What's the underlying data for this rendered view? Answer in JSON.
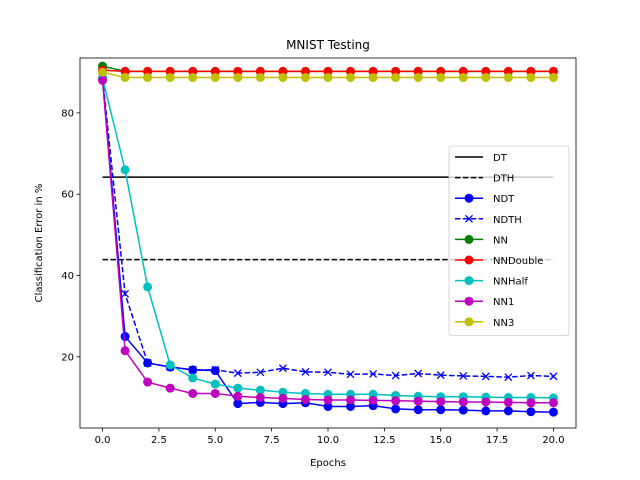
{
  "chart_data": {
    "type": "line",
    "title": "MNIST Testing",
    "xlabel": "Epochs",
    "ylabel": "Classification Error in %",
    "xlim": [
      -1,
      21
    ],
    "ylim": [
      2.5,
      93.5
    ],
    "xticks": [
      "0.0",
      "2.5",
      "5.0",
      "7.5",
      "10.0",
      "12.5",
      "15.0",
      "17.5",
      "20.0"
    ],
    "yticks": [
      "20",
      "40",
      "60",
      "80"
    ],
    "grid": false,
    "legend_position": "center-right",
    "series": [
      {
        "name": "DT",
        "color": "#000000",
        "dash": "solid",
        "marker": "none",
        "x": [
          0,
          20
        ],
        "y": [
          64.2,
          64.2
        ]
      },
      {
        "name": "DTH",
        "color": "#000000",
        "dash": "dashed",
        "marker": "none",
        "x": [
          0,
          20
        ],
        "y": [
          43.9,
          43.9
        ]
      },
      {
        "name": "NDT",
        "color": "#0000ff",
        "dash": "solid",
        "marker": "circle",
        "x": [
          0,
          1,
          2,
          3,
          4,
          5,
          6,
          7,
          8,
          9,
          10,
          11,
          12,
          13,
          14,
          15,
          16,
          17,
          18,
          19,
          20
        ],
        "y": [
          88.5,
          25.0,
          18.5,
          17.5,
          16.8,
          16.6,
          8.5,
          8.8,
          8.5,
          8.7,
          7.8,
          7.8,
          8.0,
          7.2,
          7.0,
          7.0,
          6.9,
          6.7,
          6.7,
          6.5,
          6.4
        ]
      },
      {
        "name": "NDTH",
        "color": "#0000ff",
        "dash": "dashed",
        "marker": "x",
        "x": [
          0,
          1,
          2,
          3,
          4,
          5,
          6,
          7,
          8,
          9,
          10,
          11,
          12,
          13,
          14,
          15,
          16,
          17,
          18,
          19,
          20
        ],
        "y": [
          88.5,
          35.5,
          18.5,
          17.5,
          16.8,
          16.8,
          16.0,
          16.2,
          17.2,
          16.3,
          16.2,
          15.7,
          15.8,
          15.4,
          15.9,
          15.5,
          15.3,
          15.2,
          15.0,
          15.4,
          15.2
        ]
      },
      {
        "name": "NN",
        "color": "#008000",
        "dash": "solid",
        "marker": "circle",
        "x": [
          0,
          1,
          2,
          3,
          4,
          5,
          6,
          7,
          8,
          9,
          10,
          11,
          12,
          13,
          14,
          15,
          16,
          17,
          18,
          19,
          20
        ],
        "y": [
          91.5,
          90.2,
          90.2,
          90.2,
          90.2,
          90.2,
          90.2,
          90.2,
          90.2,
          90.2,
          90.2,
          90.2,
          90.2,
          90.2,
          90.2,
          90.2,
          90.2,
          90.2,
          90.2,
          90.2,
          90.2
        ]
      },
      {
        "name": "NNDouble",
        "color": "#ff0000",
        "dash": "solid",
        "marker": "circle",
        "x": [
          0,
          1,
          2,
          3,
          4,
          5,
          6,
          7,
          8,
          9,
          10,
          11,
          12,
          13,
          14,
          15,
          16,
          17,
          18,
          19,
          20
        ],
        "y": [
          90.5,
          90.2,
          90.2,
          90.2,
          90.2,
          90.2,
          90.2,
          90.2,
          90.2,
          90.2,
          90.2,
          90.2,
          90.2,
          90.2,
          90.2,
          90.2,
          90.2,
          90.2,
          90.2,
          90.2,
          90.2
        ]
      },
      {
        "name": "NNHalf",
        "color": "#00bfbf",
        "dash": "solid",
        "marker": "circle",
        "x": [
          0,
          1,
          2,
          3,
          4,
          5,
          6,
          7,
          8,
          9,
          10,
          11,
          12,
          13,
          14,
          15,
          16,
          17,
          18,
          19,
          20
        ],
        "y": [
          88.5,
          66.0,
          37.2,
          18.0,
          14.8,
          13.3,
          12.3,
          11.8,
          11.3,
          11.0,
          10.8,
          10.8,
          10.8,
          10.5,
          10.3,
          10.2,
          10.2,
          10.1,
          10.0,
          10.0,
          9.9
        ]
      },
      {
        "name": "NN1",
        "color": "#bf00bf",
        "dash": "solid",
        "marker": "circle",
        "x": [
          0,
          1,
          2,
          3,
          4,
          5,
          6,
          7,
          8,
          9,
          10,
          11,
          12,
          13,
          14,
          15,
          16,
          17,
          18,
          19,
          20
        ],
        "y": [
          88.0,
          21.5,
          13.8,
          12.3,
          11.0,
          11.0,
          10.3,
          10.0,
          9.8,
          9.5,
          9.4,
          9.4,
          9.3,
          9.2,
          9.1,
          9.0,
          8.9,
          8.9,
          8.8,
          8.7,
          8.7
        ]
      },
      {
        "name": "NN3",
        "color": "#bfbf00",
        "dash": "solid",
        "marker": "circle",
        "x": [
          0,
          1,
          2,
          3,
          4,
          5,
          6,
          7,
          8,
          9,
          10,
          11,
          12,
          13,
          14,
          15,
          16,
          17,
          18,
          19,
          20
        ],
        "y": [
          90.0,
          88.7,
          88.7,
          88.7,
          88.7,
          88.7,
          88.7,
          88.7,
          88.7,
          88.7,
          88.7,
          88.7,
          88.7,
          88.7,
          88.7,
          88.7,
          88.7,
          88.7,
          88.7,
          88.7,
          88.7
        ]
      }
    ]
  }
}
